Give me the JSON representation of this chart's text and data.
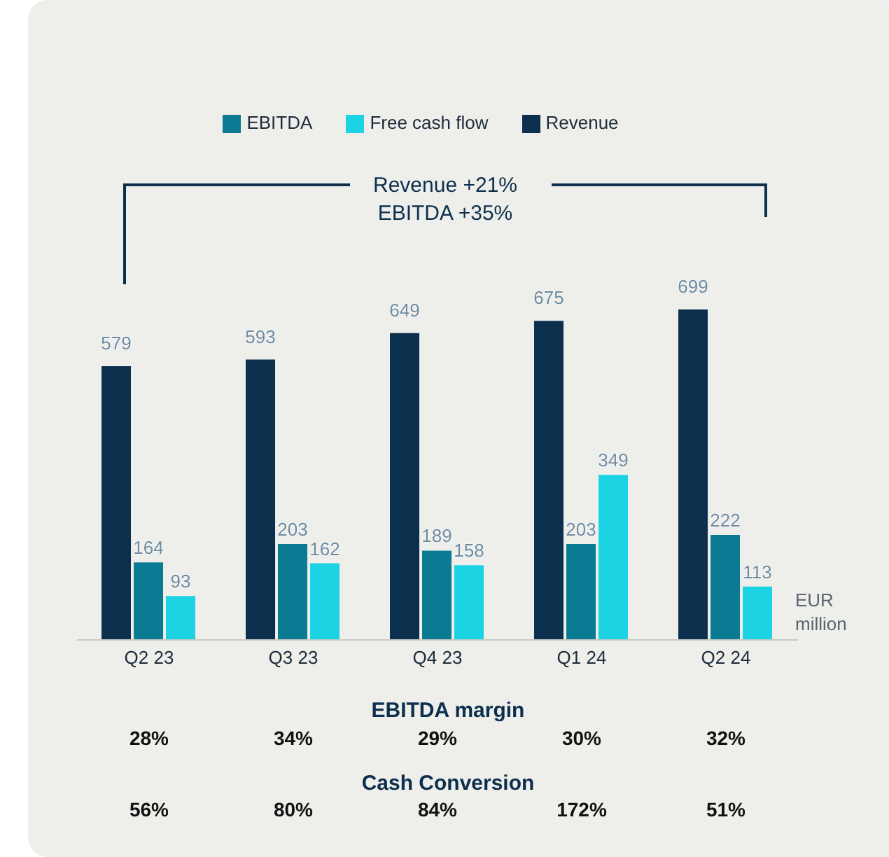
{
  "chart_data": {
    "type": "bar",
    "categories": [
      "Q2 23",
      "Q3 23",
      "Q4 23",
      "Q1 24",
      "Q2 24"
    ],
    "series": [
      {
        "name": "Revenue",
        "color": "#0c2f4e",
        "values": [
          579,
          593,
          649,
          675,
          699
        ]
      },
      {
        "name": "EBITDA",
        "color": "#0b7b93",
        "values": [
          164,
          203,
          189,
          203,
          222
        ]
      },
      {
        "name": "Free cash flow",
        "color": "#1bd3e3",
        "values": [
          93,
          162,
          158,
          349,
          113
        ]
      }
    ],
    "data_labels": true,
    "legend": "top",
    "annotations": [
      "Revenue +21%",
      "EBITDA +35%",
      "EUR million",
      "EBITDA margin",
      "28%",
      "34%",
      "29%",
      "30%",
      "32%",
      "Cash Conversion",
      "56%",
      "80%",
      "84%",
      "172%",
      "51%"
    ]
  }
}
